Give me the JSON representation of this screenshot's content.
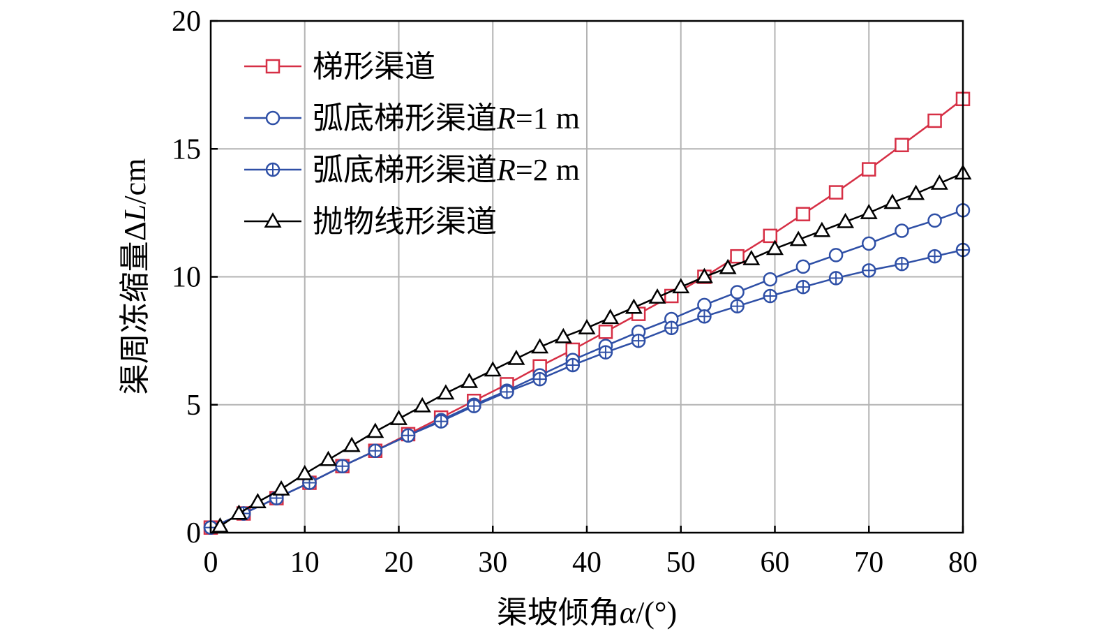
{
  "chart_data": {
    "type": "line",
    "xlabel": {
      "text": "渠坡倾角",
      "symbol": "α",
      "unit": "/(°)"
    },
    "ylabel": {
      "text": "渠周冻缩量",
      "symbol": "ΔL",
      "unit": "/cm"
    },
    "xlim": [
      0,
      80
    ],
    "ylim": [
      0,
      20
    ],
    "xticks": [
      0,
      10,
      20,
      30,
      40,
      50,
      60,
      70,
      80
    ],
    "yticks": [
      0,
      5,
      10,
      15,
      20
    ],
    "grid": true,
    "legend_position": "top-left",
    "series": [
      {
        "name": "梯形渠道",
        "name_parts": {
          "text": "梯形渠道",
          "italic": "",
          "suffix": ""
        },
        "marker": "square",
        "color": "#d62f45",
        "x": [
          0,
          3.5,
          7,
          10.5,
          14,
          17.5,
          21,
          24.5,
          28,
          31.5,
          35,
          38.5,
          42,
          45.5,
          49,
          52.5,
          56,
          59.5,
          63,
          66.5,
          70,
          73.5,
          77,
          80
        ],
        "y": [
          0.2,
          0.75,
          1.35,
          1.95,
          2.6,
          3.2,
          3.85,
          4.5,
          5.15,
          5.8,
          6.5,
          7.15,
          7.85,
          8.55,
          9.25,
          10.0,
          10.8,
          11.6,
          12.45,
          13.3,
          14.2,
          15.15,
          16.1,
          16.95
        ]
      },
      {
        "name": "弧底梯形渠道R=1 m",
        "name_parts": {
          "text": "弧底梯形渠道",
          "italic": "R",
          "suffix": "=1 m"
        },
        "marker": "circle",
        "color": "#2e4fa6",
        "x": [
          0,
          3.5,
          7,
          10.5,
          14,
          17.5,
          21,
          24.5,
          28,
          31.5,
          35,
          38.5,
          42,
          45.5,
          49,
          52.5,
          56,
          59.5,
          63,
          66.5,
          70,
          73.5,
          77,
          80
        ],
        "y": [
          0.2,
          0.75,
          1.35,
          1.95,
          2.6,
          3.2,
          3.8,
          4.4,
          5.0,
          5.55,
          6.15,
          6.75,
          7.3,
          7.85,
          8.35,
          8.9,
          9.4,
          9.9,
          10.4,
          10.85,
          11.3,
          11.8,
          12.2,
          12.6
        ]
      },
      {
        "name": "弧底梯形渠道R=2 m",
        "name_parts": {
          "text": "弧底梯形渠道",
          "italic": "R",
          "suffix": "=2 m"
        },
        "marker": "circle-plus",
        "color": "#2e4fa6",
        "x": [
          0,
          3.5,
          7,
          10.5,
          14,
          17.5,
          21,
          24.5,
          28,
          31.5,
          35,
          38.5,
          42,
          45.5,
          49,
          52.5,
          56,
          59.5,
          63,
          66.5,
          70,
          73.5,
          77,
          80
        ],
        "y": [
          0.2,
          0.75,
          1.35,
          1.95,
          2.6,
          3.2,
          3.8,
          4.35,
          4.95,
          5.5,
          6.0,
          6.55,
          7.05,
          7.5,
          8.0,
          8.45,
          8.85,
          9.25,
          9.6,
          9.95,
          10.25,
          10.5,
          10.8,
          11.05
        ]
      },
      {
        "name": "抛物线形渠道",
        "name_parts": {
          "text": "抛物线形渠道",
          "italic": "",
          "suffix": ""
        },
        "marker": "triangle",
        "color": "#000000",
        "x": [
          1,
          3,
          5,
          7.5,
          10,
          12.5,
          15,
          17.5,
          20,
          22.5,
          25,
          27.5,
          30,
          32.5,
          35,
          37.5,
          40,
          42.5,
          45,
          47.5,
          50,
          52.5,
          55,
          57.5,
          60,
          62.5,
          65,
          67.5,
          70,
          72.5,
          75,
          77.5,
          80
        ],
        "y": [
          0.25,
          0.75,
          1.2,
          1.7,
          2.3,
          2.85,
          3.4,
          3.95,
          4.45,
          4.95,
          5.45,
          5.9,
          6.35,
          6.8,
          7.25,
          7.65,
          8.0,
          8.4,
          8.8,
          9.2,
          9.6,
          10.0,
          10.35,
          10.7,
          11.1,
          11.45,
          11.8,
          12.15,
          12.5,
          12.9,
          13.25,
          13.65,
          14.05
        ]
      }
    ]
  }
}
